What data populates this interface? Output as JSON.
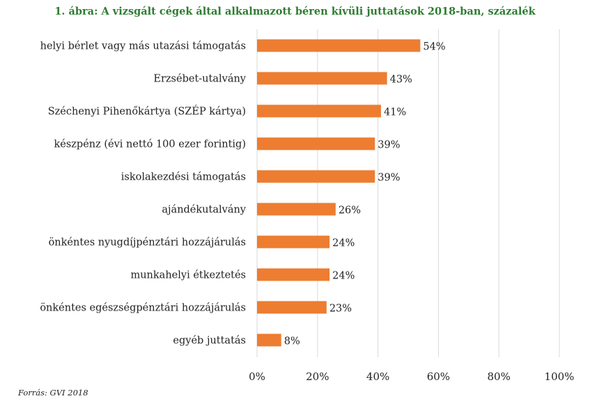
{
  "chart_data": {
    "type": "bar",
    "orientation": "horizontal",
    "title": "1. ábra: A vizsgált cégek által alkalmazott béren kívüli juttatások 2018-ban, százalék",
    "categories": [
      "helyi bérlet vagy más utazási támogatás",
      "Erzsébet-utalvány",
      "Széchenyi Pihenőkártya (SZÉP kártya)",
      "készpénz (évi nettó 100 ezer forintig)",
      "iskolakezdési támogatás",
      "ajándékutalvány",
      "önkéntes nyugdíjpénztári hozzájárulás",
      "munkahelyi étkeztetés",
      "önkéntes egészségpénztári hozzájárulás",
      "egyéb juttatás"
    ],
    "values": [
      54,
      43,
      41,
      39,
      39,
      26,
      24,
      24,
      23,
      8
    ],
    "value_labels": [
      "54%",
      "43%",
      "41%",
      "39%",
      "39%",
      "26%",
      "24%",
      "24%",
      "23%",
      "8%"
    ],
    "xlim": [
      0,
      100
    ],
    "xticks": [
      0,
      20,
      40,
      60,
      80,
      100
    ],
    "xtick_labels": [
      "0%",
      "20%",
      "40%",
      "60%",
      "80%",
      "100%"
    ],
    "grid": "vertical",
    "legend": "none",
    "source": "Forrás: GVI 2018"
  },
  "colors": {
    "bar": "#ED7D31",
    "title": "#2E7D32",
    "grid": "#D9D9D9"
  }
}
